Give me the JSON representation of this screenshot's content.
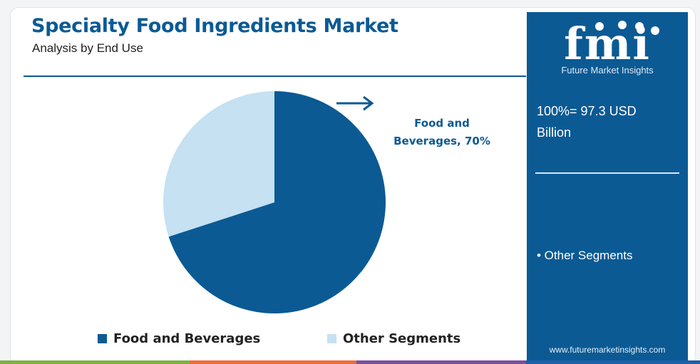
{
  "header": {
    "title": "Specialty Food Ingredients Market",
    "subtitle": "Analysis by End Use"
  },
  "chart_data": {
    "type": "pie",
    "title": "Specialty Food Ingredients Market",
    "subtitle": "Analysis by End Use",
    "slices": [
      {
        "label": "Food and Beverages",
        "value": 70,
        "color": "#0b5a94"
      },
      {
        "label": "Other Segments",
        "value": 30,
        "color": "#c5e1f2"
      }
    ],
    "callout": {
      "line1": "Food and",
      "line2": "Beverages, 70%"
    },
    "legend_position": "bottom"
  },
  "legend": [
    {
      "label": "Food and Beverages",
      "color": "#0b5a94"
    },
    {
      "label": "Other Segments",
      "color": "#c5e1f2"
    }
  ],
  "sidebar": {
    "logo_text": "fmi",
    "logo_subtitle": "Future Market Insights",
    "total_line1": "100%= 97.3 USD",
    "total_line2": "Billion",
    "note": "• Other Segments",
    "website": "www.futuremarketinsights.com"
  },
  "colors": {
    "brand": "#0b5a94",
    "light": "#c5e1f2",
    "footer": [
      "#7cb342",
      "#ef6c3a",
      "#7b4fa0",
      "#1f5fa8"
    ]
  }
}
